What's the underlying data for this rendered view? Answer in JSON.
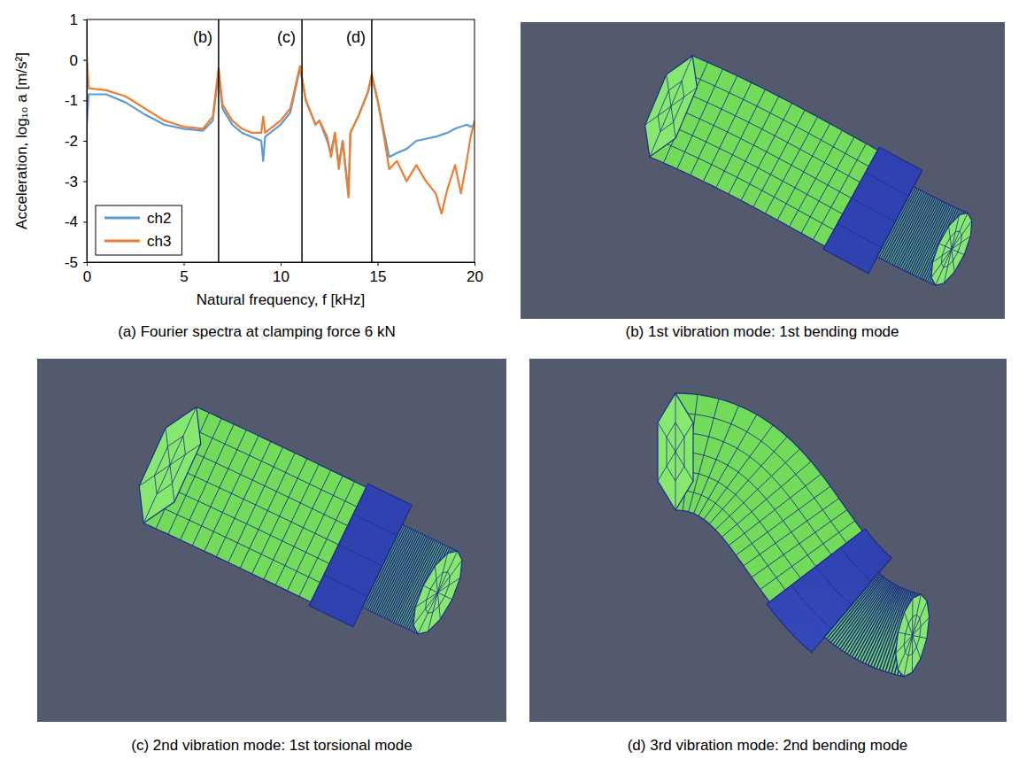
{
  "chart_data": {
    "type": "line",
    "title": "(a) Fourier spectra at clamping force 6 kN",
    "x_label": "Natural frequency, f [kHz]",
    "y_label": "Acceleration, log₁₀ a [m/s²]",
    "x": [
      0,
      0.1,
      1,
      2,
      3,
      4,
      5,
      6,
      6.5,
      6.8,
      7,
      7.5,
      8,
      8.5,
      9,
      9.1,
      9.2,
      10,
      10.5,
      11,
      11.3,
      11.8,
      12,
      12.4,
      12.6,
      12.8,
      13,
      13.2,
      13.5,
      13.6,
      14,
      14.5,
      14.7,
      15,
      15.3,
      15.6,
      16,
      16.5,
      17,
      17.5,
      18,
      18.3,
      18.6,
      19,
      19.3,
      19.6,
      19.8,
      20
    ],
    "series": [
      {
        "name": "ch2",
        "color": "#5b9bd5",
        "values": [
          -1.6,
          -0.85,
          -0.85,
          -1.05,
          -1.35,
          -1.6,
          -1.7,
          -1.75,
          -1.5,
          -0.3,
          -1.2,
          -1.6,
          -1.8,
          -1.9,
          -2.0,
          -2.5,
          -1.9,
          -1.6,
          -1.3,
          -0.2,
          -1.0,
          -1.6,
          -1.5,
          -2.0,
          -2.3,
          -1.8,
          -2.6,
          -2.0,
          -3.3,
          -1.8,
          -1.4,
          -0.8,
          -0.4,
          -1.0,
          -1.7,
          -2.4,
          -2.3,
          -2.2,
          -2.0,
          -1.95,
          -1.9,
          -1.85,
          -1.8,
          -1.7,
          -1.65,
          -1.6,
          -1.65,
          -1.6
        ]
      },
      {
        "name": "ch3",
        "color": "#ed7d31",
        "values": [
          0.1,
          -0.7,
          -0.75,
          -0.9,
          -1.2,
          -1.5,
          -1.65,
          -1.7,
          -1.4,
          -0.2,
          -1.1,
          -1.5,
          -1.7,
          -1.8,
          -1.8,
          -1.4,
          -1.8,
          -1.5,
          -1.2,
          -0.15,
          -1.0,
          -1.6,
          -1.5,
          -1.9,
          -2.4,
          -1.8,
          -2.7,
          -2.0,
          -3.4,
          -1.8,
          -1.4,
          -0.8,
          -0.35,
          -1.0,
          -1.8,
          -2.7,
          -2.5,
          -3.0,
          -2.6,
          -3.0,
          -3.3,
          -3.8,
          -3.2,
          -2.6,
          -3.3,
          -2.5,
          -1.9,
          -1.5
        ]
      }
    ],
    "xlim": [
      0,
      20
    ],
    "xticks": [
      0,
      5,
      10,
      15,
      20
    ],
    "ylim": [
      -5,
      1
    ],
    "yticks": [
      -5,
      -4,
      -3,
      -2,
      -1,
      0,
      1
    ],
    "grid": false,
    "legend": "bottom-left",
    "annotations": [
      {
        "x": 6.8,
        "label": "(b)"
      },
      {
        "x": 11.1,
        "label": "(c)"
      },
      {
        "x": 14.7,
        "label": "(d)"
      }
    ]
  },
  "panels": [
    {
      "caption": "(b) 1st vibration mode: 1st bending mode"
    },
    {
      "caption": "(c) 2nd vibration mode: 1st torsional mode"
    },
    {
      "caption": "(d) 3rd vibration mode: 2nd bending mode"
    }
  ]
}
